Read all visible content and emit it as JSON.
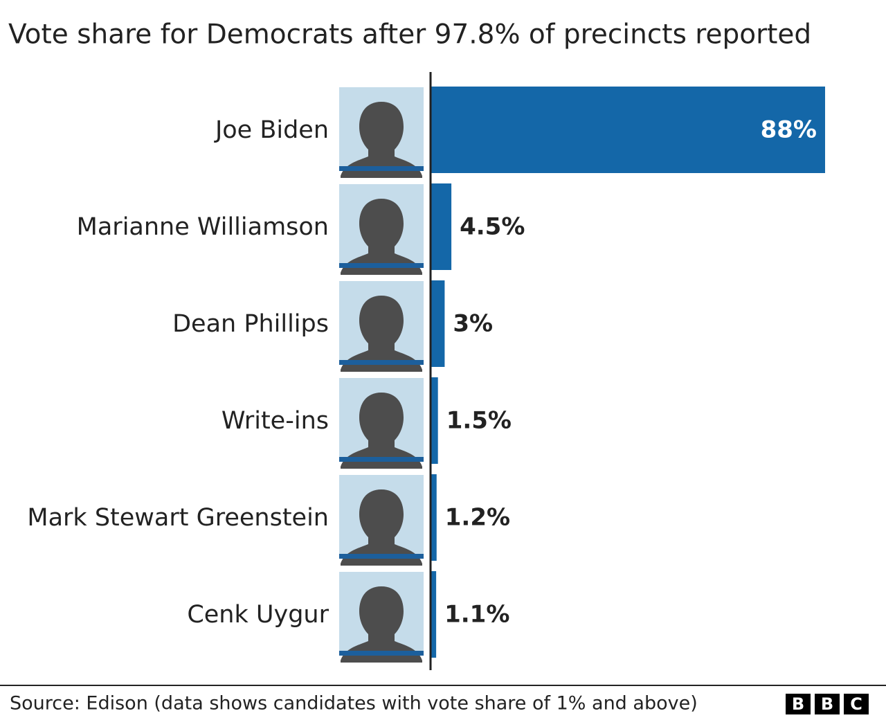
{
  "chart_data": {
    "type": "barh",
    "title": "Vote share for Democrats after 97.8% of precincts reported",
    "categories": [
      "Joe Biden",
      "Marianne Williamson",
      "Dean Phillips",
      "Write-ins",
      "Mark Stewart Greenstein",
      "Cenk Uygur"
    ],
    "values": [
      88,
      4.5,
      3,
      1.5,
      1.2,
      1.1
    ],
    "value_labels": [
      "88%",
      "4.5%",
      "3%",
      "1.5%",
      "1.2%",
      "1.1%"
    ],
    "color": "#1467a8",
    "source": "Source: Edison (data shows candidates with vote share of 1% and above)",
    "logo": [
      "B",
      "B",
      "C"
    ]
  }
}
